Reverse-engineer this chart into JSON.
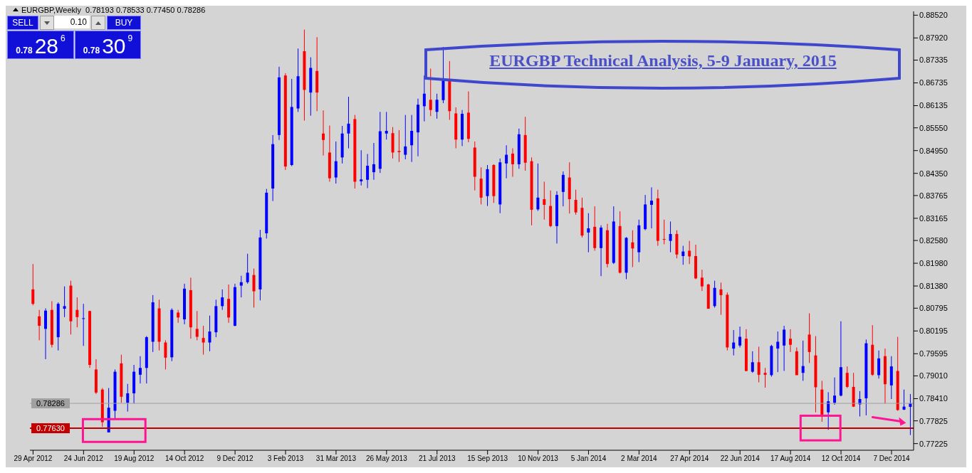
{
  "chart_data": {
    "type": "candlestick",
    "title": "EURGBP Technical Analysis, 5-9 January, 2015",
    "subtitle": "EURGBP,Weekly  0.78193 0.78533 0.77450 0.78286",
    "annotations": [
      "SELL",
      "0.10",
      "BUY",
      "0.78",
      "28",
      "6",
      "0.78",
      "30",
      "9"
    ],
    "categories": [
      "29 Apr 2012",
      null,
      null,
      null,
      null,
      null,
      null,
      null,
      "24 Jun 2012",
      null,
      null,
      null,
      null,
      null,
      null,
      null,
      "19 Aug 2012",
      null,
      null,
      null,
      null,
      null,
      null,
      null,
      "14 Oct 2012",
      null,
      null,
      null,
      null,
      null,
      null,
      null,
      "9 Dec 2012",
      null,
      null,
      null,
      null,
      null,
      null,
      null,
      "3 Feb 2013",
      null,
      null,
      null,
      null,
      null,
      null,
      null,
      "31 Mar 2013",
      null,
      null,
      null,
      null,
      null,
      null,
      null,
      "26 May 2013",
      null,
      null,
      null,
      null,
      null,
      null,
      null,
      "21 Jul 2013",
      null,
      null,
      null,
      null,
      null,
      null,
      null,
      "15 Sep 2013",
      null,
      null,
      null,
      null,
      null,
      null,
      null,
      "10 Nov 2013",
      null,
      null,
      null,
      null,
      null,
      null,
      null,
      "5 Jan 2014",
      null,
      null,
      null,
      null,
      null,
      null,
      null,
      "2 Mar 2014",
      null,
      null,
      null,
      null,
      null,
      null,
      null,
      "27 Apr 2014",
      null,
      null,
      null,
      null,
      null,
      null,
      null,
      "22 Jun 2014",
      null,
      null,
      null,
      null,
      null,
      null,
      null,
      "17 Aug 2014",
      null,
      null,
      null,
      null,
      null,
      null,
      null,
      "12 Oct 2014",
      null,
      null,
      null,
      null,
      null,
      null,
      null,
      "7 Dec 2014",
      null,
      null,
      null
    ],
    "ohlc": [
      [
        0.8129,
        0.8196,
        0.8087,
        0.8091
      ],
      [
        0.8058,
        0.8075,
        0.7995,
        0.8033
      ],
      [
        0.8025,
        0.8079,
        0.7945,
        0.8073
      ],
      [
        0.8075,
        0.8098,
        0.7976,
        0.7983
      ],
      [
        0.8003,
        0.8095,
        0.7968,
        0.8091
      ],
      [
        0.8078,
        0.8137,
        0.8056,
        0.8085
      ],
      [
        0.8139,
        0.8152,
        0.801,
        0.8045
      ],
      [
        0.8075,
        0.8108,
        0.8029,
        0.8056
      ],
      [
        0.8052,
        0.8091,
        0.798,
        0.8053
      ],
      [
        0.8072,
        0.8073,
        0.7922,
        0.793
      ],
      [
        0.7918,
        0.7945,
        0.7853,
        0.7857
      ],
      [
        0.7865,
        0.7869,
        0.7767,
        0.7779
      ],
      [
        0.7752,
        0.7869,
        0.7752,
        0.7817
      ],
      [
        0.7809,
        0.7918,
        0.7788,
        0.7912
      ],
      [
        0.7934,
        0.7957,
        0.783,
        0.7846
      ],
      [
        0.783,
        0.788,
        0.7807,
        0.7855
      ],
      [
        0.7855,
        0.793,
        0.7828,
        0.7912
      ],
      [
        0.7904,
        0.7953,
        0.7881,
        0.7922
      ],
      [
        0.7922,
        0.8006,
        0.7881,
        0.8003
      ],
      [
        0.7991,
        0.8114,
        0.7964,
        0.8095
      ],
      [
        0.8079,
        0.8102,
        0.7968,
        0.7991
      ],
      [
        0.7989,
        0.7995,
        0.7918,
        0.7949
      ],
      [
        0.795,
        0.8079,
        0.794,
        0.8075
      ],
      [
        0.8068,
        0.8075,
        0.8041,
        0.8055
      ],
      [
        0.805,
        0.8144,
        0.8037,
        0.8131
      ],
      [
        0.8127,
        0.816,
        0.7999,
        0.8029
      ],
      [
        0.8025,
        0.8072,
        0.7995,
        0.8004
      ],
      [
        0.8001,
        0.8033,
        0.7957,
        0.7989
      ],
      [
        0.7989,
        0.806,
        0.7966,
        0.8018
      ],
      [
        0.8016,
        0.8102,
        0.8003,
        0.8085
      ],
      [
        0.8085,
        0.8129,
        0.8075,
        0.8108
      ],
      [
        0.8104,
        0.8142,
        0.8041,
        0.8055
      ],
      [
        0.8033,
        0.8144,
        0.8032,
        0.8135
      ],
      [
        0.8139,
        0.8165,
        0.8108,
        0.8148
      ],
      [
        0.8148,
        0.8223,
        0.8144,
        0.8173
      ],
      [
        0.8167,
        0.8184,
        0.8081,
        0.8124
      ],
      [
        0.8129,
        0.8286,
        0.81,
        0.8266
      ],
      [
        0.8277,
        0.8394,
        0.8263,
        0.8384
      ],
      [
        0.8395,
        0.8536,
        0.8362,
        0.8512
      ],
      [
        0.8536,
        0.8716,
        0.8523,
        0.8688
      ],
      [
        0.8693,
        0.8699,
        0.8444,
        0.8453
      ],
      [
        0.8457,
        0.8684,
        0.8454,
        0.861
      ],
      [
        0.8606,
        0.8764,
        0.8597,
        0.8691
      ],
      [
        0.8757,
        0.8814,
        0.8574,
        0.8655
      ],
      [
        0.8648,
        0.8741,
        0.8587,
        0.8713
      ],
      [
        0.8705,
        0.8794,
        0.8599,
        0.8648
      ],
      [
        0.854,
        0.8601,
        0.8482,
        0.8523
      ],
      [
        0.849,
        0.8561,
        0.8413,
        0.8422
      ],
      [
        0.8424,
        0.8519,
        0.8408,
        0.8467
      ],
      [
        0.8477,
        0.856,
        0.8461,
        0.854
      ],
      [
        0.854,
        0.8637,
        0.8501,
        0.8566
      ],
      [
        0.8578,
        0.8589,
        0.8395,
        0.8413
      ],
      [
        0.8414,
        0.8496,
        0.8403,
        0.8419
      ],
      [
        0.8418,
        0.8486,
        0.8396,
        0.8455
      ],
      [
        0.8438,
        0.8515,
        0.8418,
        0.8459
      ],
      [
        0.8447,
        0.8597,
        0.8436,
        0.8546
      ],
      [
        0.854,
        0.8597,
        0.8524,
        0.8547
      ],
      [
        0.8541,
        0.8557,
        0.8474,
        0.849
      ],
      [
        0.8494,
        0.8549,
        0.8465,
        0.8491
      ],
      [
        0.8484,
        0.8589,
        0.8472,
        0.8506
      ],
      [
        0.8509,
        0.8589,
        0.8465,
        0.8547
      ],
      [
        0.8543,
        0.8632,
        0.848,
        0.8616
      ],
      [
        0.8612,
        0.8693,
        0.8572,
        0.8645
      ],
      [
        0.8629,
        0.8711,
        0.8586,
        0.8602
      ],
      [
        0.8597,
        0.8645,
        0.8579,
        0.8629
      ],
      [
        0.8628,
        0.8768,
        0.862,
        0.8685
      ],
      [
        0.868,
        0.8731,
        0.8576,
        0.8599
      ],
      [
        0.8593,
        0.8609,
        0.8501,
        0.8524
      ],
      [
        0.8524,
        0.8602,
        0.8507,
        0.8592
      ],
      [
        0.8595,
        0.8651,
        0.8517,
        0.8526
      ],
      [
        0.8503,
        0.8519,
        0.839,
        0.8426
      ],
      [
        0.8421,
        0.8451,
        0.8353,
        0.8371
      ],
      [
        0.8375,
        0.8457,
        0.8349,
        0.8446
      ],
      [
        0.8457,
        0.8459,
        0.8357,
        0.8375
      ],
      [
        0.8353,
        0.8474,
        0.833,
        0.8464
      ],
      [
        0.8461,
        0.8509,
        0.8422,
        0.8484
      ],
      [
        0.8487,
        0.8501,
        0.8426,
        0.8459
      ],
      [
        0.8459,
        0.8553,
        0.8447,
        0.8538
      ],
      [
        0.8536,
        0.8584,
        0.8442,
        0.8463
      ],
      [
        0.8467,
        0.8477,
        0.8298,
        0.8339
      ],
      [
        0.834,
        0.8461,
        0.8336,
        0.8371
      ],
      [
        0.8367,
        0.8413,
        0.8313,
        0.8352
      ],
      [
        0.8349,
        0.839,
        0.8293,
        0.8296
      ],
      [
        0.8296,
        0.8388,
        0.825,
        0.8378
      ],
      [
        0.8386,
        0.844,
        0.8348,
        0.8431
      ],
      [
        0.8424,
        0.8464,
        0.8329,
        0.8367
      ],
      [
        0.8365,
        0.8392,
        0.8326,
        0.8332
      ],
      [
        0.8344,
        0.8371,
        0.8266,
        0.8271
      ],
      [
        0.8279,
        0.833,
        0.8227,
        0.829
      ],
      [
        0.8294,
        0.8348,
        0.8231,
        0.8238
      ],
      [
        0.8238,
        0.8298,
        0.8164,
        0.8292
      ],
      [
        0.8285,
        0.8302,
        0.8187,
        0.8196
      ],
      [
        0.8199,
        0.8348,
        0.8196,
        0.8308
      ],
      [
        0.8296,
        0.8335,
        0.8171,
        0.8173
      ],
      [
        0.8173,
        0.8267,
        0.8156,
        0.8265
      ],
      [
        0.8253,
        0.8285,
        0.8188,
        0.8237
      ],
      [
        0.8227,
        0.8313,
        0.8201,
        0.8298
      ],
      [
        0.8288,
        0.8378,
        0.8285,
        0.8353
      ],
      [
        0.8352,
        0.8398,
        0.829,
        0.8363
      ],
      [
        0.8369,
        0.8392,
        0.8244,
        0.8257
      ],
      [
        0.8262,
        0.8313,
        0.8248,
        0.826
      ],
      [
        0.8257,
        0.8308,
        0.8227,
        0.8275
      ],
      [
        0.8275,
        0.8285,
        0.8211,
        0.8221
      ],
      [
        0.8217,
        0.8244,
        0.8194,
        0.8229
      ],
      [
        0.8231,
        0.8257,
        0.8196,
        0.8216
      ],
      [
        0.8217,
        0.8247,
        0.8156,
        0.8158
      ],
      [
        0.816,
        0.8181,
        0.8125,
        0.8137
      ],
      [
        0.8142,
        0.8144,
        0.8078,
        0.8078
      ],
      [
        0.8085,
        0.8152,
        0.8081,
        0.8133
      ],
      [
        0.8129,
        0.8147,
        0.8062,
        0.8114
      ],
      [
        0.8115,
        0.8121,
        0.7968,
        0.7976
      ],
      [
        0.7973,
        0.8022,
        0.7955,
        0.7989
      ],
      [
        0.7981,
        0.8031,
        0.7976,
        0.8004
      ],
      [
        0.7999,
        0.8024,
        0.7913,
        0.7914
      ],
      [
        0.7912,
        0.7966,
        0.7909,
        0.7937
      ],
      [
        0.7937,
        0.7978,
        0.7884,
        0.7904
      ],
      [
        0.7909,
        0.7922,
        0.787,
        0.7904
      ],
      [
        0.7903,
        0.7983,
        0.7899,
        0.798
      ],
      [
        0.7973,
        0.8018,
        0.7911,
        0.7991
      ],
      [
        0.7981,
        0.8033,
        0.7914,
        0.8023
      ],
      [
        0.7999,
        0.8024,
        0.7964,
        0.7983
      ],
      [
        0.7966,
        0.7976,
        0.7903,
        0.7903
      ],
      [
        0.7909,
        0.7994,
        0.7888,
        0.7927
      ],
      [
        0.801,
        0.8066,
        0.7935,
        0.7964
      ],
      [
        0.7955,
        0.8006,
        0.7805,
        0.7871
      ],
      [
        0.7865,
        0.7888,
        0.778,
        0.7799
      ],
      [
        0.7805,
        0.7858,
        0.7759,
        0.7834
      ],
      [
        0.783,
        0.7897,
        0.7825,
        0.7849
      ],
      [
        0.7849,
        0.8045,
        0.7847,
        0.7924
      ],
      [
        0.7909,
        0.7926,
        0.7869,
        0.7872
      ],
      [
        0.7872,
        0.7909,
        0.7819,
        0.782
      ],
      [
        0.7826,
        0.7861,
        0.7794,
        0.784
      ],
      [
        0.7842,
        0.7997,
        0.7797,
        0.7987
      ],
      [
        0.7983,
        0.8035,
        0.7901,
        0.7904
      ],
      [
        0.7903,
        0.7968,
        0.7894,
        0.7947
      ],
      [
        0.7953,
        0.7973,
        0.7828,
        0.7879
      ],
      [
        0.7876,
        0.7953,
        0.784,
        0.7926
      ],
      [
        0.7914,
        0.8004,
        0.7809,
        0.7811
      ],
      [
        0.7812,
        0.7865,
        0.7811,
        0.782
      ],
      [
        0.78193,
        0.78533,
        0.7745,
        0.78286
      ]
    ],
    "colors": [
      "#ff0000",
      "#ff0000",
      "#0000ff",
      "#ff0000",
      "#0000ff",
      "#0000ff",
      "#ff0000",
      "#ff0000",
      "#0000ff",
      "#ff0000",
      "#ff0000",
      "#ff0000",
      "#0000ff",
      "#0000ff",
      "#ff0000",
      "#0000ff",
      "#0000ff",
      "#0000ff",
      "#0000ff",
      "#0000ff",
      "#ff0000",
      "#ff0000",
      "#0000ff",
      "#ff0000",
      "#0000ff",
      "#ff0000",
      "#ff0000",
      "#ff0000",
      "#0000ff",
      "#0000ff",
      "#0000ff",
      "#ff0000",
      "#0000ff",
      "#0000ff",
      "#0000ff",
      "#ff0000",
      "#0000ff",
      "#0000ff",
      "#0000ff",
      "#0000ff",
      "#ff0000",
      "#0000ff",
      "#0000ff",
      "#ff0000",
      "#0000ff",
      "#ff0000",
      "#ff0000",
      "#ff0000",
      "#0000ff",
      "#0000ff",
      "#0000ff",
      "#ff0000",
      "#0000ff",
      "#0000ff",
      "#0000ff",
      "#0000ff",
      "#0000ff",
      "#ff0000",
      "#ff0000",
      "#0000ff",
      "#0000ff",
      "#0000ff",
      "#0000ff",
      "#ff0000",
      "#0000ff",
      "#0000ff",
      "#ff0000",
      "#ff0000",
      "#0000ff",
      "#ff0000",
      "#ff0000",
      "#ff0000",
      "#0000ff",
      "#ff0000",
      "#0000ff",
      "#0000ff",
      "#ff0000",
      "#0000ff",
      "#ff0000",
      "#ff0000",
      "#0000ff",
      "#ff0000",
      "#ff0000",
      "#0000ff",
      "#0000ff",
      "#ff0000",
      "#ff0000",
      "#ff0000",
      "#0000ff",
      "#ff0000",
      "#0000ff",
      "#ff0000",
      "#0000ff",
      "#ff0000",
      "#0000ff",
      "#ff0000",
      "#0000ff",
      "#0000ff",
      "#0000ff",
      "#ff0000",
      "#ff0000",
      "#0000ff",
      "#ff0000",
      "#0000ff",
      "#ff0000",
      "#ff0000",
      "#ff0000",
      "#ff0000",
      "#0000ff",
      "#ff0000",
      "#ff0000",
      "#0000ff",
      "#0000ff",
      "#ff0000",
      "#0000ff",
      "#ff0000",
      "#ff0000",
      "#0000ff",
      "#0000ff",
      "#0000ff",
      "#ff0000",
      "#ff0000",
      "#0000ff",
      "#ff0000",
      "#ff0000",
      "#ff0000",
      "#0000ff",
      "#0000ff",
      "#0000ff",
      "#ff0000",
      "#ff0000",
      "#0000ff",
      "#0000ff",
      "#ff0000",
      "#0000ff",
      "#ff0000",
      "#0000ff",
      "#ff0000",
      "#0000ff",
      "#0000ff"
    ],
    "ylim": [
      0.7705,
      0.8862
    ],
    "yticks": [
      {
        "value": 0.77225,
        "label": "0.77225"
      },
      {
        "value": 0.77825,
        "label": "0.77825"
      },
      {
        "value": 0.7841,
        "label": "0.78410"
      },
      {
        "value": 0.7901,
        "label": "0.79010"
      },
      {
        "value": 0.79595,
        "label": "0.79595"
      },
      {
        "value": 0.80195,
        "label": "0.80195"
      },
      {
        "value": 0.80795,
        "label": "0.80795"
      },
      {
        "value": 0.8138,
        "label": "0.81380"
      },
      {
        "value": 0.8198,
        "label": "0.81980"
      },
      {
        "value": 0.8258,
        "label": "0.82580"
      },
      {
        "value": 0.83165,
        "label": "0.83165"
      },
      {
        "value": 0.83765,
        "label": "0.83765"
      },
      {
        "value": 0.8435,
        "label": "0.84350"
      },
      {
        "value": 0.8495,
        "label": "0.84950"
      },
      {
        "value": 0.8555,
        "label": "0.85550"
      },
      {
        "value": 0.86135,
        "label": "0.86135"
      },
      {
        "value": 0.86735,
        "label": "0.86735"
      },
      {
        "value": 0.87335,
        "label": "0.87335"
      },
      {
        "value": 0.8792,
        "label": "0.87920"
      },
      {
        "value": 0.8852,
        "label": "0.88520"
      }
    ],
    "ref_lines": [
      {
        "axis": "y",
        "value": 0.7763,
        "label": "0.77630",
        "color": "#c00000"
      },
      {
        "axis": "y",
        "value": 0.78286,
        "label": "0.78286",
        "color": "#a0a0a0"
      }
    ]
  }
}
